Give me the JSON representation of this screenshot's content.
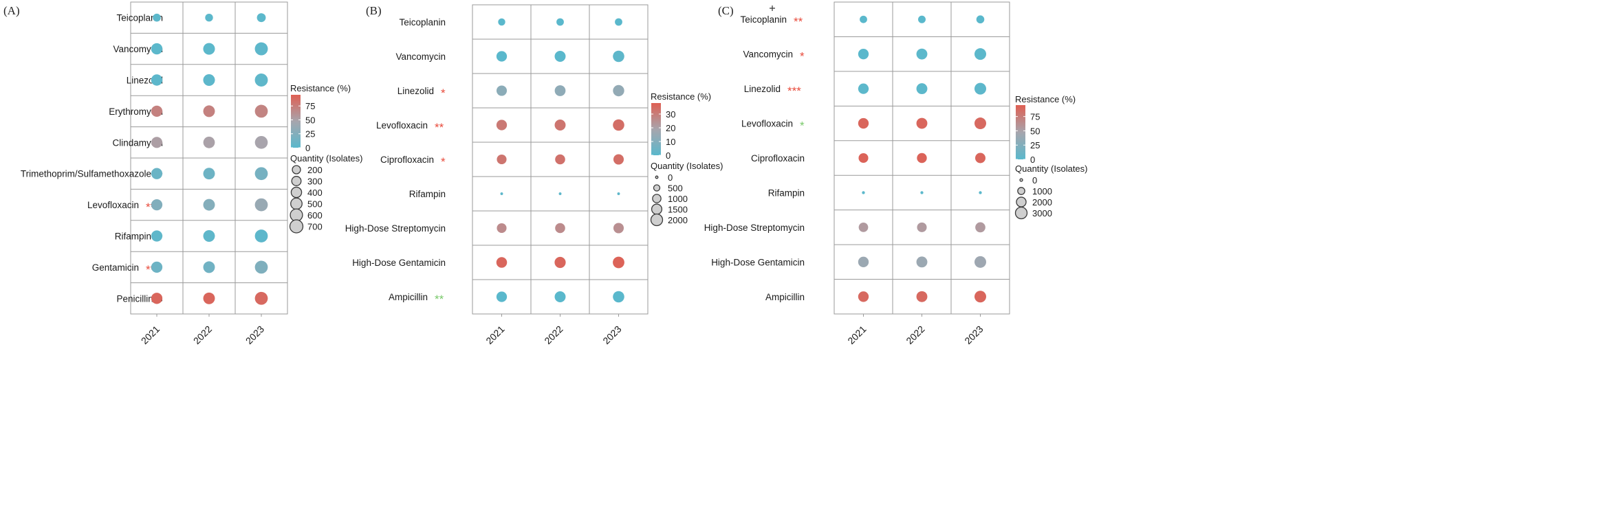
{
  "colors": {
    "low": "#5ab8cc",
    "mid": "#a7a5ad",
    "high": "#df5f53",
    "grid": "#9a9a9a",
    "star_red": "#e84b3c",
    "star_green": "#7ac96b",
    "point_stroke": "#3a3a3a",
    "legend_fill": "#cfcfcf"
  },
  "chart_data": [
    {
      "type": "bubble-matrix",
      "panel_label": "(A)",
      "years": [
        "2021",
        "2022",
        "2023"
      ],
      "colorbar": {
        "title": "Resistance (%)",
        "min": 0,
        "max": 95,
        "ticks": [
          0,
          25,
          50,
          75
        ],
        "labels": [
          "0",
          "25",
          "50",
          "75"
        ]
      },
      "sizebar": {
        "title": "Quantity (Isolates)",
        "min": 150,
        "max": 700,
        "values": [
          200,
          300,
          400,
          500,
          600,
          700
        ],
        "labels": [
          "200",
          "300",
          "400",
          "500",
          "600",
          "700"
        ]
      },
      "rows": [
        {
          "label": "Teicoplanin",
          "stars": "",
          "star_color": "",
          "quantity": [
            180,
            170,
            250
          ],
          "resistance": [
            1,
            1,
            1
          ]
        },
        {
          "label": "Vancomycin",
          "stars": "",
          "star_color": "",
          "quantity": [
            490,
            540,
            690
          ],
          "resistance": [
            1,
            1,
            2
          ]
        },
        {
          "label": "Linezolid",
          "stars": "",
          "star_color": "",
          "quantity": [
            490,
            540,
            690
          ],
          "resistance": [
            2,
            2,
            3
          ]
        },
        {
          "label": "Erythromycin",
          "stars": "",
          "star_color": "",
          "quantity": [
            480,
            530,
            680
          ],
          "resistance": [
            72,
            72,
            70
          ]
        },
        {
          "label": "Clindamycin",
          "stars": "",
          "star_color": "",
          "quantity": [
            470,
            520,
            670
          ],
          "resistance": [
            52,
            50,
            48
          ]
        },
        {
          "label": "Trimethoprim/Sulfamethoxazole",
          "stars": "*",
          "star_color": "red",
          "quantity": [
            480,
            530,
            680
          ],
          "resistance": [
            10,
            12,
            17
          ]
        },
        {
          "label": "Levofloxacin",
          "stars": "***",
          "star_color": "red",
          "quantity": [
            480,
            530,
            680
          ],
          "resistance": [
            24,
            26,
            38
          ]
        },
        {
          "label": "Rifampin",
          "stars": "*",
          "star_color": "green",
          "quantity": [
            480,
            530,
            680
          ],
          "resistance": [
            3,
            3,
            2
          ]
        },
        {
          "label": "Gentamicin",
          "stars": "***",
          "star_color": "red",
          "quantity": [
            480,
            530,
            680
          ],
          "resistance": [
            12,
            14,
            23
          ]
        },
        {
          "label": "Penicillin G",
          "stars": "",
          "star_color": "",
          "quantity": [
            480,
            530,
            680
          ],
          "resistance": [
            90,
            90,
            88
          ]
        }
      ]
    },
    {
      "type": "bubble-matrix",
      "panel_label": "(B)",
      "years": [
        "2021",
        "2022",
        "2023"
      ],
      "colorbar": {
        "title": "Resistance (%)",
        "min": 0,
        "max": 38,
        "ticks": [
          0,
          10,
          20,
          30
        ],
        "labels": [
          "0",
          "10",
          "20",
          "30"
        ]
      },
      "sizebar": {
        "title": "Quantity (Isolates)",
        "min": 0,
        "max": 2000,
        "values": [
          0,
          500,
          1000,
          1500,
          2000
        ],
        "labels": [
          "0",
          "500",
          "1000",
          "1500",
          "2000"
        ]
      },
      "rows": [
        {
          "label": "Teicoplanin",
          "stars": "",
          "star_color": "",
          "quantity": [
            700,
            750,
            750
          ],
          "resistance": [
            0,
            0,
            0
          ]
        },
        {
          "label": "Vancomycin",
          "stars": "",
          "star_color": "",
          "quantity": [
            1600,
            1750,
            1900
          ],
          "resistance": [
            0,
            0,
            1
          ]
        },
        {
          "label": "Linezolid",
          "stars": "*",
          "star_color": "red",
          "quantity": [
            1550,
            1700,
            1850
          ],
          "resistance": [
            12,
            13,
            14
          ]
        },
        {
          "label": "Levofloxacin",
          "stars": "**",
          "star_color": "red",
          "quantity": [
            1600,
            1750,
            1900
          ],
          "resistance": [
            31,
            32,
            34
          ]
        },
        {
          "label": "Ciprofloxacin",
          "stars": "*",
          "star_color": "red",
          "quantity": [
            1350,
            1450,
            1550
          ],
          "resistance": [
            32,
            33,
            34
          ]
        },
        {
          "label": "Rifampin",
          "stars": "",
          "star_color": "",
          "quantity": [
            20,
            20,
            20
          ],
          "resistance": [
            1,
            1,
            1
          ]
        },
        {
          "label": "High-Dose Streptomycin",
          "stars": "",
          "star_color": "",
          "quantity": [
            1350,
            1450,
            1550
          ],
          "resistance": [
            26,
            26,
            25
          ]
        },
        {
          "label": "High-Dose Gentamicin",
          "stars": "",
          "star_color": "",
          "quantity": [
            1650,
            1800,
            1950
          ],
          "resistance": [
            36,
            36,
            37
          ]
        },
        {
          "label": "Ampicillin",
          "stars": "**",
          "star_color": "green",
          "quantity": [
            1600,
            1750,
            1900
          ],
          "resistance": [
            0,
            0,
            0
          ]
        }
      ]
    },
    {
      "type": "bubble-matrix",
      "panel_label": "(C)",
      "years": [
        "2021",
        "2022",
        "2023"
      ],
      "colorbar": {
        "title": "Resistance (%)",
        "min": 0,
        "max": 95,
        "ticks": [
          0,
          25,
          50,
          75
        ],
        "labels": [
          "0",
          "25",
          "50",
          "75"
        ]
      },
      "sizebar": {
        "title": "Quantity (Isolates)",
        "min": 0,
        "max": 3000,
        "values": [
          0,
          1000,
          2000,
          3000
        ],
        "labels": [
          "0",
          "1000",
          "2000",
          "3000"
        ]
      },
      "rows": [
        {
          "label": "Teicoplanin",
          "stars": "**",
          "star_color": "red",
          "quantity": [
            1100,
            1150,
            1300
          ],
          "resistance": [
            0,
            0,
            0
          ]
        },
        {
          "label": "Vancomycin",
          "stars": "*",
          "star_color": "red",
          "quantity": [
            2400,
            2600,
            3000
          ],
          "resistance": [
            0,
            1,
            1
          ]
        },
        {
          "label": "Linezolid",
          "stars": "***",
          "star_color": "red",
          "quantity": [
            2400,
            2600,
            3000
          ],
          "resistance": [
            1,
            1,
            2
          ]
        },
        {
          "label": "Levofloxacin",
          "stars": "*",
          "star_color": "green",
          "quantity": [
            2400,
            2600,
            3000
          ],
          "resistance": [
            90,
            90,
            88
          ]
        },
        {
          "label": "Ciprofloxacin",
          "stars": "",
          "star_color": "",
          "quantity": [
            2000,
            2100,
            2300
          ],
          "resistance": [
            92,
            92,
            90
          ]
        },
        {
          "label": "Rifampin",
          "stars": "",
          "star_color": "",
          "quantity": [
            30,
            30,
            30
          ],
          "resistance": [
            1,
            1,
            1
          ]
        },
        {
          "label": "High-Dose Streptomycin",
          "stars": "",
          "star_color": "",
          "quantity": [
            1900,
            2000,
            2200
          ],
          "resistance": [
            55,
            55,
            55
          ]
        },
        {
          "label": "High-Dose Gentamicin",
          "stars": "",
          "star_color": "",
          "quantity": [
            2400,
            2600,
            3000
          ],
          "resistance": [
            40,
            40,
            42
          ]
        },
        {
          "label": "Ampicillin",
          "stars": "",
          "star_color": "",
          "quantity": [
            2400,
            2600,
            3000
          ],
          "resistance": [
            88,
            88,
            90
          ]
        }
      ]
    }
  ]
}
